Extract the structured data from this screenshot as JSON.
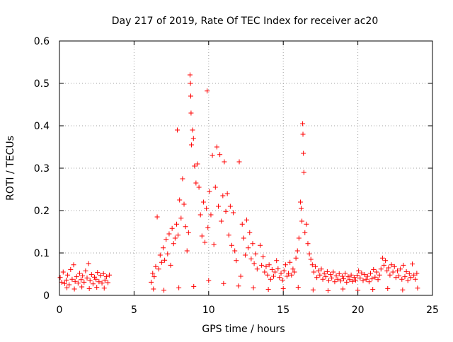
{
  "chart_data": {
    "type": "scatter",
    "title": "Day 217 of 2019, Rate Of TEC Index for receiver ac20",
    "xlabel": "GPS time / hours",
    "ylabel": "ROTI / TECUs",
    "xlim": [
      0,
      25
    ],
    "ylim": [
      0,
      0.6
    ],
    "xticks": [
      0,
      5,
      10,
      15,
      20,
      25
    ],
    "yticks": [
      0,
      0.1,
      0.2,
      0.3,
      0.4,
      0.5,
      0.6
    ],
    "xtick_labels": [
      "0",
      "5",
      "10",
      "15",
      "20",
      "25"
    ],
    "ytick_labels": [
      "0",
      "0.1",
      "0.2",
      "0.3",
      "0.4",
      "0.5",
      "0.6"
    ],
    "grid": true,
    "marker": "+",
    "colors": {
      "series": "#ff0000",
      "grid": "#a0a0a0",
      "axis": "#000000"
    },
    "series": [
      {
        "points": [
          [
            0.05,
            0.042
          ],
          [
            0.15,
            0.031
          ],
          [
            0.25,
            0.055
          ],
          [
            0.35,
            0.028
          ],
          [
            0.45,
            0.036
          ],
          [
            0.55,
            0.048
          ],
          [
            0.65,
            0.025
          ],
          [
            0.75,
            0.061
          ],
          [
            0.85,
            0.038
          ],
          [
            0.95,
            0.072
          ],
          [
            1.05,
            0.033
          ],
          [
            1.15,
            0.044
          ],
          [
            1.25,
            0.029
          ],
          [
            1.35,
            0.052
          ],
          [
            1.45,
            0.037
          ],
          [
            1.55,
            0.046
          ],
          [
            1.65,
            0.031
          ],
          [
            1.75,
            0.058
          ],
          [
            1.85,
            0.041
          ],
          [
            1.95,
            0.075
          ],
          [
            2.05,
            0.035
          ],
          [
            2.15,
            0.049
          ],
          [
            2.25,
            0.027
          ],
          [
            2.35,
            0.043
          ],
          [
            2.45,
            0.038
          ],
          [
            2.55,
            0.054
          ],
          [
            2.65,
            0.032
          ],
          [
            2.75,
            0.047
          ],
          [
            2.85,
            0.029
          ],
          [
            2.95,
            0.051
          ],
          [
            3.05,
            0.036
          ],
          [
            3.15,
            0.044
          ],
          [
            3.25,
            0.03
          ],
          [
            3.35,
            0.048
          ],
          [
            0.5,
            0.018
          ],
          [
            1.0,
            0.015
          ],
          [
            1.5,
            0.02
          ],
          [
            2.0,
            0.016
          ],
          [
            2.5,
            0.019
          ],
          [
            3.0,
            0.017
          ],
          [
            6.15,
            0.031
          ],
          [
            6.25,
            0.052
          ],
          [
            6.35,
            0.044
          ],
          [
            6.45,
            0.068
          ],
          [
            6.55,
            0.185
          ],
          [
            6.65,
            0.062
          ],
          [
            6.75,
            0.095
          ],
          [
            6.85,
            0.078
          ],
          [
            6.95,
            0.112
          ],
          [
            7.05,
            0.083
          ],
          [
            7.15,
            0.132
          ],
          [
            7.25,
            0.098
          ],
          [
            7.35,
            0.145
          ],
          [
            7.45,
            0.071
          ],
          [
            7.55,
            0.158
          ],
          [
            7.65,
            0.122
          ],
          [
            7.75,
            0.135
          ],
          [
            7.85,
            0.168
          ],
          [
            7.95,
            0.142
          ],
          [
            8.05,
            0.225
          ],
          [
            8.15,
            0.182
          ],
          [
            8.25,
            0.275
          ],
          [
            8.35,
            0.215
          ],
          [
            8.45,
            0.162
          ],
          [
            8.55,
            0.105
          ],
          [
            8.65,
            0.148
          ],
          [
            8.75,
            0.52
          ],
          [
            8.78,
            0.5
          ],
          [
            8.8,
            0.47
          ],
          [
            8.82,
            0.43
          ],
          [
            8.85,
            0.355
          ],
          [
            8.92,
            0.39
          ],
          [
            8.98,
            0.37
          ],
          [
            9.05,
            0.305
          ],
          [
            9.15,
            0.265
          ],
          [
            9.25,
            0.31
          ],
          [
            9.35,
            0.255
          ],
          [
            9.45,
            0.19
          ],
          [
            9.55,
            0.14
          ],
          [
            9.65,
            0.22
          ],
          [
            7.9,
            0.39
          ],
          [
            9.9,
            0.482
          ],
          [
            9.75,
            0.125
          ],
          [
            9.85,
            0.205
          ],
          [
            9.95,
            0.16
          ],
          [
            10.05,
            0.245
          ],
          [
            10.15,
            0.19
          ],
          [
            10.25,
            0.33
          ],
          [
            10.35,
            0.12
          ],
          [
            10.45,
            0.255
          ],
          [
            10.55,
            0.35
          ],
          [
            10.65,
            0.21
          ],
          [
            10.75,
            0.332
          ],
          [
            10.85,
            0.175
          ],
          [
            10.95,
            0.235
          ],
          [
            11.05,
            0.315
          ],
          [
            11.15,
            0.198
          ],
          [
            11.25,
            0.24
          ],
          [
            11.35,
            0.142
          ],
          [
            11.45,
            0.21
          ],
          [
            11.55,
            0.118
          ],
          [
            11.65,
            0.195
          ],
          [
            11.75,
            0.105
          ],
          [
            11.85,
            0.082
          ],
          [
            12.05,
            0.315
          ],
          [
            12.15,
            0.045
          ],
          [
            12.25,
            0.168
          ],
          [
            12.35,
            0.135
          ],
          [
            12.45,
            0.095
          ],
          [
            12.55,
            0.178
          ],
          [
            12.65,
            0.112
          ],
          [
            12.75,
            0.148
          ],
          [
            12.85,
            0.086
          ],
          [
            12.95,
            0.122
          ],
          [
            13.05,
            0.075
          ],
          [
            13.15,
            0.098
          ],
          [
            13.25,
            0.062
          ],
          [
            13.45,
            0.118
          ],
          [
            13.55,
            0.071
          ],
          [
            13.65,
            0.091
          ],
          [
            13.75,
            0.055
          ],
          [
            13.85,
            0.068
          ],
          [
            13.95,
            0.048
          ],
          [
            14.05,
            0.072
          ],
          [
            14.15,
            0.038
          ],
          [
            14.25,
            0.061
          ],
          [
            14.35,
            0.045
          ],
          [
            14.45,
            0.055
          ],
          [
            14.55,
            0.082
          ],
          [
            14.65,
            0.063
          ],
          [
            14.75,
            0.042
          ],
          [
            14.85,
            0.052
          ],
          [
            14.95,
            0.036
          ],
          [
            15.05,
            0.058
          ],
          [
            15.15,
            0.072
          ],
          [
            15.25,
            0.045
          ],
          [
            15.35,
            0.052
          ],
          [
            15.45,
            0.078
          ],
          [
            15.55,
            0.048
          ],
          [
            15.65,
            0.062
          ],
          [
            15.75,
            0.055
          ],
          [
            15.85,
            0.088
          ],
          [
            15.95,
            0.105
          ],
          [
            16.05,
            0.135
          ],
          [
            16.15,
            0.22
          ],
          [
            16.2,
            0.205
          ],
          [
            16.25,
            0.175
          ],
          [
            16.3,
            0.405
          ],
          [
            16.32,
            0.38
          ],
          [
            16.35,
            0.335
          ],
          [
            16.38,
            0.29
          ],
          [
            16.45,
            0.148
          ],
          [
            16.55,
            0.168
          ],
          [
            16.65,
            0.122
          ],
          [
            16.75,
            0.098
          ],
          [
            16.85,
            0.085
          ],
          [
            16.95,
            0.072
          ],
          [
            17.05,
            0.055
          ],
          [
            17.15,
            0.068
          ],
          [
            17.25,
            0.042
          ],
          [
            17.35,
            0.058
          ],
          [
            17.45,
            0.048
          ],
          [
            17.55,
            0.062
          ],
          [
            17.65,
            0.038
          ],
          [
            17.75,
            0.052
          ],
          [
            17.85,
            0.044
          ],
          [
            17.95,
            0.056
          ],
          [
            18.05,
            0.035
          ],
          [
            18.15,
            0.049
          ],
          [
            18.25,
            0.041
          ],
          [
            18.35,
            0.055
          ],
          [
            18.45,
            0.032
          ],
          [
            18.55,
            0.046
          ],
          [
            18.65,
            0.038
          ],
          [
            18.75,
            0.051
          ],
          [
            18.85,
            0.034
          ],
          [
            18.95,
            0.045
          ],
          [
            19.05,
            0.039
          ],
          [
            19.15,
            0.052
          ],
          [
            19.25,
            0.031
          ],
          [
            19.35,
            0.044
          ],
          [
            19.45,
            0.037
          ],
          [
            19.55,
            0.048
          ],
          [
            19.65,
            0.033
          ],
          [
            19.75,
            0.042
          ],
          [
            19.85,
            0.036
          ],
          [
            19.95,
            0.047
          ],
          [
            20.05,
            0.058
          ],
          [
            20.15,
            0.041
          ],
          [
            20.25,
            0.053
          ],
          [
            20.35,
            0.035
          ],
          [
            20.45,
            0.049
          ],
          [
            20.55,
            0.038
          ],
          [
            20.65,
            0.045
          ],
          [
            20.75,
            0.032
          ],
          [
            20.85,
            0.052
          ],
          [
            20.95,
            0.039
          ],
          [
            21.05,
            0.061
          ],
          [
            21.15,
            0.043
          ],
          [
            21.25,
            0.055
          ],
          [
            21.35,
            0.037
          ],
          [
            21.45,
            0.048
          ],
          [
            21.55,
            0.062
          ],
          [
            21.65,
            0.088
          ],
          [
            21.75,
            0.071
          ],
          [
            21.85,
            0.082
          ],
          [
            21.95,
            0.058
          ],
          [
            22.05,
            0.065
          ],
          [
            22.15,
            0.048
          ],
          [
            22.25,
            0.072
          ],
          [
            22.35,
            0.055
          ],
          [
            22.45,
            0.068
          ],
          [
            22.55,
            0.042
          ],
          [
            22.65,
            0.058
          ],
          [
            22.75,
            0.046
          ],
          [
            22.85,
            0.062
          ],
          [
            22.95,
            0.038
          ],
          [
            23.05,
            0.071
          ],
          [
            23.15,
            0.044
          ],
          [
            23.25,
            0.056
          ],
          [
            23.35,
            0.035
          ],
          [
            23.45,
            0.051
          ],
          [
            23.55,
            0.042
          ],
          [
            23.65,
            0.074
          ],
          [
            23.75,
            0.048
          ],
          [
            23.85,
            0.038
          ],
          [
            23.95,
            0.052
          ],
          [
            6.3,
            0.015
          ],
          [
            7.0,
            0.012
          ],
          [
            8.0,
            0.018
          ],
          [
            9.0,
            0.021
          ],
          [
            10.0,
            0.035
          ],
          [
            11.0,
            0.028
          ],
          [
            12.0,
            0.022
          ],
          [
            13.0,
            0.018
          ],
          [
            14.0,
            0.014
          ],
          [
            15.0,
            0.016
          ],
          [
            16.0,
            0.019
          ],
          [
            17.0,
            0.013
          ],
          [
            18.0,
            0.011
          ],
          [
            19.0,
            0.015
          ],
          [
            20.0,
            0.012
          ],
          [
            21.0,
            0.014
          ],
          [
            22.0,
            0.016
          ],
          [
            23.0,
            0.013
          ],
          [
            24.0,
            0.017
          ]
        ]
      }
    ]
  }
}
